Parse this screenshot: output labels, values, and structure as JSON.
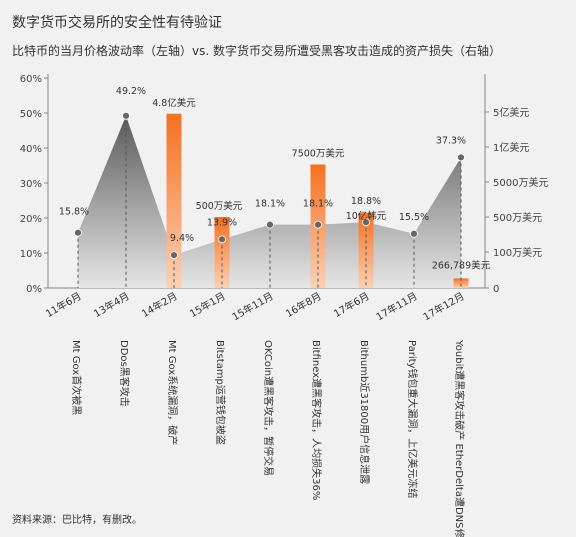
{
  "title": "数字货币交易所的安全性有待验证",
  "subtitle": "比特币的当月价格波动率（左轴）vs. 数字货币交易所遭受黑客攻击造成的资产损失（右轴）",
  "source": "资料来源：巴比特，有删改。",
  "colors": {
    "area_top": "#5a5a5a",
    "area_bottom": "#e6e6e6",
    "bar_top": "#f47020",
    "bar_bottom": "#fbd1b4"
  },
  "chart_data": {
    "type": "area+bar",
    "categories": [
      "11年6月",
      "13年4月",
      "14年2月",
      "15年1月",
      "15年11月",
      "16年8月",
      "17年6月",
      "17年11月",
      "17年12月"
    ],
    "events": [
      "Mt Gox首次被黑",
      "DDos黑客攻击",
      "Mt Gox系统漏洞，破产",
      "Bitstamp运营钱包被盗",
      "OKCoin遭黑客攻击，暂停交易",
      "Bitfinex遭黑客攻击，人均损失36%",
      "Bithumb近31800用户信息泄露",
      "Parity钱包重大漏洞，上亿美元冻结",
      "Youbit遭黑客攻击破产 EtherDelta遭DNS修改"
    ],
    "volatility_series": {
      "axis": "left",
      "values": [
        15.8,
        49.2,
        9.4,
        13.9,
        18.1,
        18.1,
        18.8,
        15.5,
        37.3
      ],
      "labels": [
        "15.8%",
        "49.2%",
        "9.4%",
        "13.9%",
        "18.1%",
        "18.1%",
        "18.8%",
        "15.5%",
        "37.3%"
      ]
    },
    "loss_series": {
      "axis": "right",
      "values": [
        null,
        null,
        480000000,
        5000000,
        null,
        75000000,
        10000000,
        null,
        266789
      ],
      "labels": [
        "",
        "",
        "4.8亿美元",
        "500万美元",
        "",
        "7500万美元",
        "10亿韩元",
        "",
        "266,789美元"
      ]
    },
    "left_axis": {
      "ylim": [
        0,
        60
      ],
      "ticks": [
        "0%",
        "10%",
        "20%",
        "30%",
        "40%",
        "50%",
        "60%"
      ]
    },
    "right_axis": {
      "scale": "nonlinear",
      "ticks": [
        "0",
        "100万美元",
        "500万美元",
        "5000万美元",
        "1亿美元",
        "5亿美元"
      ],
      "tick_values": [
        0,
        1000000,
        5000000,
        50000000,
        100000000,
        500000000
      ]
    }
  }
}
